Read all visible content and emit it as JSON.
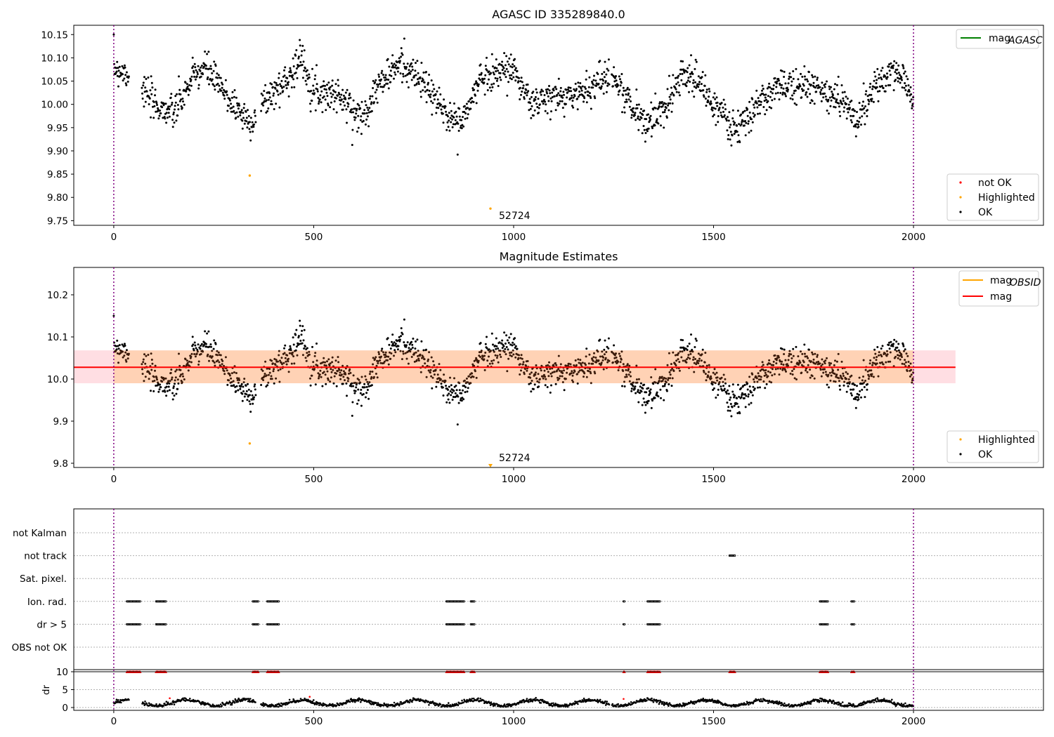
{
  "figure": {
    "panels": [
      {
        "id": "top",
        "title": "AGASC ID 335289840.0",
        "x_ticks": [
          "0",
          "500",
          "1000",
          "1500",
          "2000"
        ],
        "y_ticks": [
          "9.75",
          "9.80",
          "9.85",
          "9.90",
          "9.95",
          "10.00",
          "10.05",
          "10.10",
          "10.15"
        ],
        "legend_lines": [
          {
            "label": "mag",
            "sub": "AGASC",
            "color": "#008000"
          }
        ],
        "legend_points": [
          {
            "label": "not OK",
            "color": "#ff0000"
          },
          {
            "label": "Highlighted",
            "color": "#ffa500"
          },
          {
            "label": "OK",
            "color": "#000000"
          }
        ],
        "annotation": "52724"
      },
      {
        "id": "middle",
        "title": "Magnitude Estimates",
        "x_ticks": [
          "0",
          "500",
          "1000",
          "1500",
          "2000"
        ],
        "y_ticks": [
          "9.8",
          "9.9",
          "10.0",
          "10.1",
          "10.2"
        ],
        "legend_lines": [
          {
            "label": "mag",
            "sub": "OBSID",
            "color": "#ffa500"
          },
          {
            "label": "mag",
            "sub": "",
            "color": "#ff0000"
          }
        ],
        "legend_points": [
          {
            "label": "Highlighted",
            "color": "#ffa500"
          },
          {
            "label": "OK",
            "color": "#000000"
          }
        ],
        "annotation": "52724"
      },
      {
        "id": "flags",
        "x_ticks": [
          "0",
          "500",
          "1000",
          "1500",
          "2000"
        ],
        "row_labels": [
          "not Kalman",
          "not track",
          "Sat. pixel.",
          "Ion. rad.",
          "dr > 5",
          "OBS not OK"
        ]
      },
      {
        "id": "dr",
        "ylabel": "dr",
        "x_ticks": [
          "0",
          "500",
          "1000",
          "1500",
          "2000"
        ],
        "y_ticks": [
          "0",
          "5",
          "10"
        ]
      }
    ]
  },
  "chart_data": [
    {
      "type": "scatter",
      "title": "AGASC ID 335289840.0",
      "xlabel": "",
      "ylabel": "",
      "xlim": [
        -100,
        2325
      ],
      "ylim": [
        9.74,
        10.17
      ],
      "vlines": [
        0,
        2000
      ],
      "series": [
        {
          "name": "OK",
          "color": "#000000",
          "x_range": [
            0,
            2000
          ],
          "count": 1800,
          "segments_note": "dense scatter",
          "trend": [
            [
              0,
              10.08
            ],
            [
              50,
              10.06
            ],
            [
              100,
              10.0
            ],
            [
              150,
              9.98
            ],
            [
              200,
              10.06
            ],
            [
              230,
              10.08
            ],
            [
              280,
              10.02
            ],
            [
              310,
              9.99
            ],
            [
              340,
              9.96
            ],
            [
              380,
              10.01
            ],
            [
              420,
              10.04
            ],
            [
              470,
              10.1
            ],
            [
              500,
              10.03
            ],
            [
              560,
              10.02
            ],
            [
              620,
              9.97
            ],
            [
              660,
              10.04
            ],
            [
              720,
              10.09
            ],
            [
              780,
              10.04
            ],
            [
              830,
              9.98
            ],
            [
              870,
              9.96
            ],
            [
              920,
              10.06
            ],
            [
              960,
              10.07
            ],
            [
              1000,
              10.08
            ],
            [
              1040,
              10.0
            ],
            [
              1080,
              10.01
            ],
            [
              1150,
              10.02
            ],
            [
              1200,
              10.04
            ],
            [
              1240,
              10.07
            ],
            [
              1300,
              9.99
            ],
            [
              1330,
              9.96
            ],
            [
              1370,
              9.98
            ],
            [
              1420,
              10.07
            ],
            [
              1460,
              10.05
            ],
            [
              1500,
              10.0
            ],
            [
              1560,
              9.94
            ],
            [
              1620,
              10.01
            ],
            [
              1700,
              10.05
            ],
            [
              1760,
              10.03
            ],
            [
              1820,
              10.01
            ],
            [
              1860,
              9.97
            ],
            [
              1900,
              10.03
            ],
            [
              1950,
              10.07
            ],
            [
              1990,
              10.04
            ],
            [
              2000,
              9.99
            ]
          ]
        },
        {
          "name": "Highlighted",
          "color": "#ffa500",
          "x": [
            340,
            942
          ],
          "y": [
            9.847,
            9.776
          ]
        },
        {
          "name": "not OK",
          "color": "#ff0000",
          "x": [],
          "y": []
        }
      ],
      "annotations": [
        {
          "text": "52724",
          "x": 960,
          "y": 9.76
        }
      ]
    },
    {
      "type": "scatter",
      "title": "Magnitude Estimates",
      "xlim": [
        -100,
        2325
      ],
      "ylim": [
        9.79,
        10.265
      ],
      "vlines": [
        0,
        2000
      ],
      "lines": [
        {
          "name": "mag",
          "value": 10.028,
          "color": "#ff0000"
        }
      ],
      "bands": [
        {
          "lo": 9.99,
          "hi": 10.068,
          "x_range": [
            -100,
            2105
          ],
          "color": "pink"
        }
      ],
      "series": [
        {
          "name": "OK",
          "color": "#000000",
          "note": "same points as top panel"
        },
        {
          "name": "Highlighted",
          "color": "#ffa500",
          "x": [
            340,
            942
          ],
          "y": [
            9.847,
            9.776
          ]
        }
      ],
      "annotations": [
        {
          "text": "52724",
          "x": 960,
          "y": 9.81
        }
      ]
    },
    {
      "type": "scatter",
      "title": "",
      "categories": [
        "not Kalman",
        "not track",
        "Sat. pixel.",
        "Ion. rad.",
        "dr > 5",
        "OBS not OK"
      ],
      "flag_ranges": {
        "not track": [
          [
            1540,
            1555
          ]
        ],
        "Ion. rad.": [
          [
            33,
            68
          ],
          [
            106,
            131
          ],
          [
            348,
            362
          ],
          [
            384,
            414
          ],
          [
            832,
            878
          ],
          [
            893,
            903
          ],
          [
            1275,
            1278
          ],
          [
            1335,
            1366
          ],
          [
            1766,
            1786
          ],
          [
            1845,
            1852
          ]
        ],
        "dr > 5": [
          [
            33,
            68
          ],
          [
            106,
            131
          ],
          [
            348,
            362
          ],
          [
            384,
            414
          ],
          [
            832,
            878
          ],
          [
            893,
            903
          ],
          [
            1275,
            1278
          ],
          [
            1335,
            1366
          ],
          [
            1766,
            1786
          ],
          [
            1845,
            1852
          ]
        ]
      }
    },
    {
      "type": "scatter",
      "ylabel": "dr",
      "ylim": [
        0,
        10
      ],
      "y_ticks": [
        0,
        5,
        10
      ],
      "series": [
        {
          "name": "dr",
          "color": "#000000",
          "typical_range": [
            0.5,
            2.5
          ]
        },
        {
          "name": "dr > 5",
          "color": "#ff0000",
          "value": 10,
          "x_ranges": [
            [
              33,
              68
            ],
            [
              106,
              131
            ],
            [
              348,
              362
            ],
            [
              384,
              414
            ],
            [
              832,
              878
            ],
            [
              893,
              903
            ],
            [
              1275,
              1278
            ],
            [
              1335,
              1366
            ],
            [
              1540,
              1555
            ],
            [
              1766,
              1786
            ],
            [
              1845,
              1852
            ]
          ]
        }
      ]
    }
  ]
}
